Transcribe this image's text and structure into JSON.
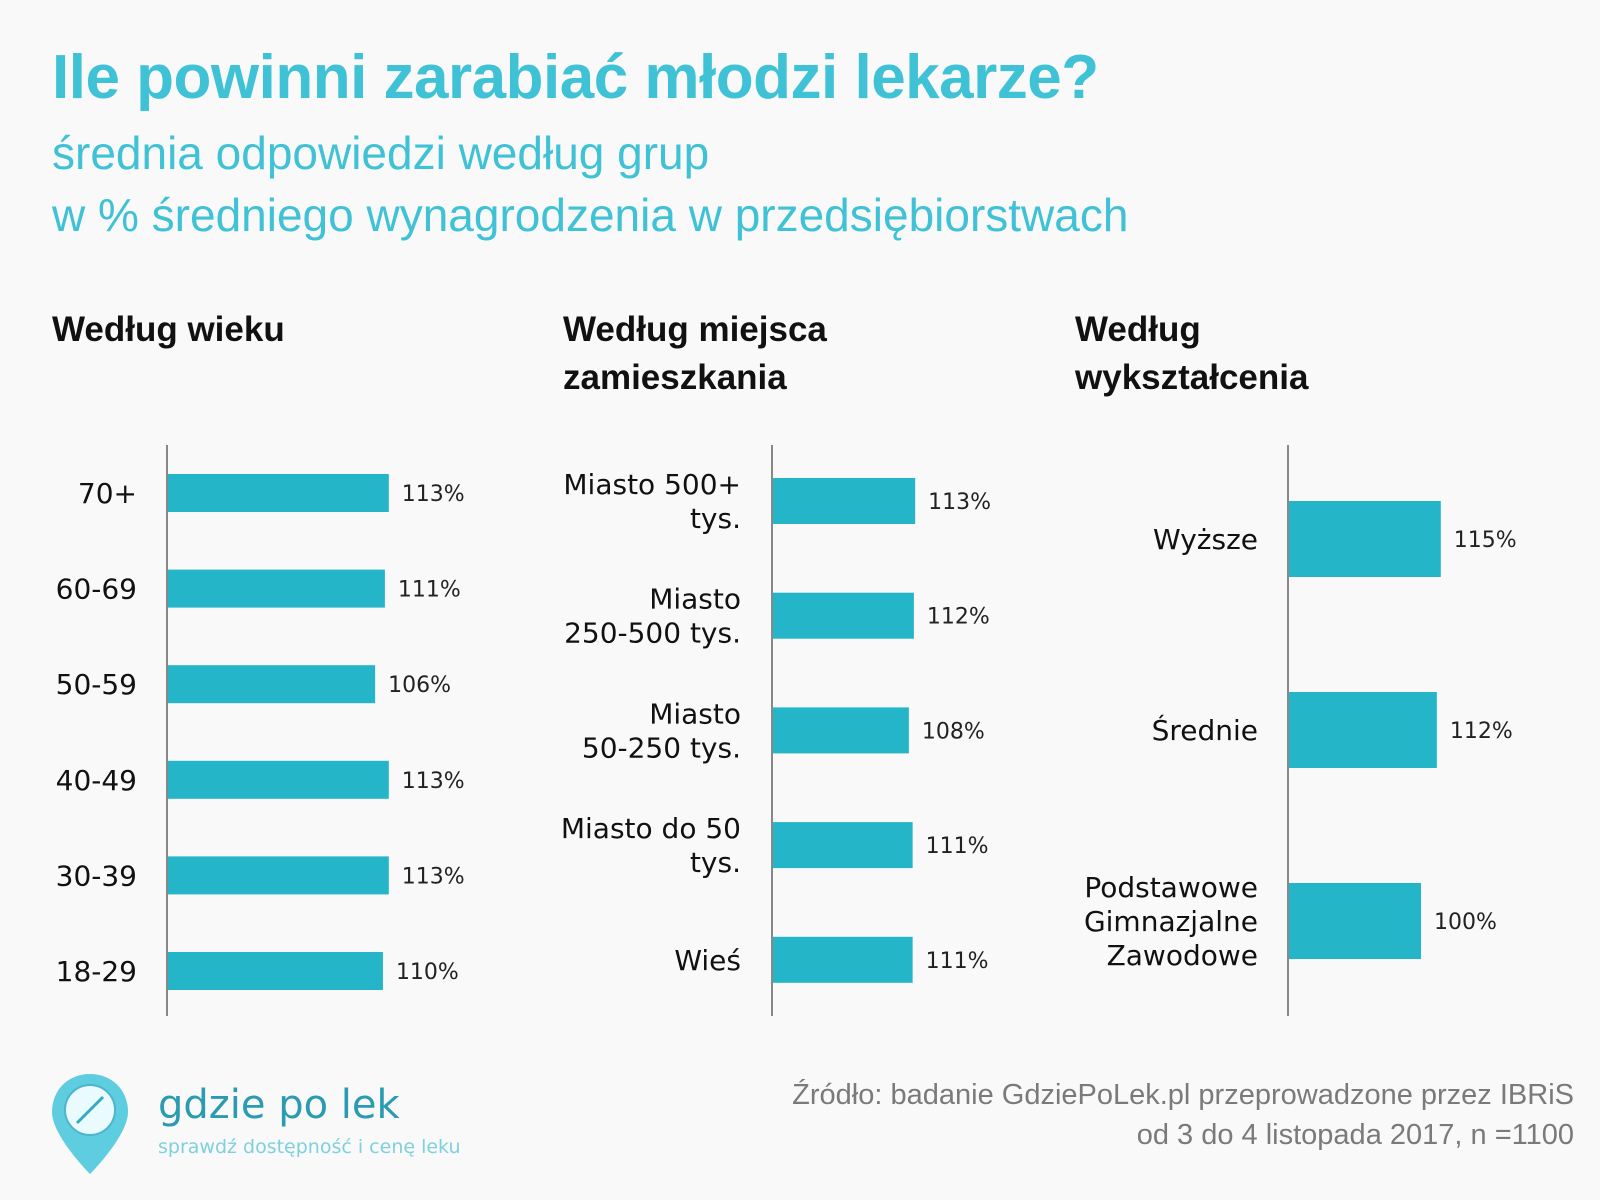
{
  "header": {
    "title": "Ile powinni zarabiać młodzi lekarze?",
    "subtitle_line1": "średnia odpowiedzi według grup",
    "subtitle_line2": "w % średniego wynagrodzenia w przedsiębiorstwach"
  },
  "colors": {
    "accent": "#3fc1d6",
    "bar": "#24b5c8",
    "axis": "#888888"
  },
  "chart_data": [
    {
      "type": "bar",
      "orientation": "horizontal",
      "title": "Według wieku",
      "categories": [
        "70+",
        "60-69",
        "50-59",
        "40-49",
        "30-39",
        "18-29"
      ],
      "values": [
        113,
        111,
        106,
        113,
        113,
        110
      ],
      "value_labels": [
        "113%",
        "111%",
        "106%",
        "113%",
        "113%",
        "110%"
      ],
      "unit": "%"
    },
    {
      "type": "bar",
      "orientation": "horizontal",
      "title": "Według miejsca zamieszkania",
      "categories": [
        "Miasto 500+ tys.",
        "Miasto 250-500 tys.",
        "Miasto 50-250 tys.",
        "Miasto do 50 tys.",
        "Wieś"
      ],
      "category_lines": [
        [
          "Miasto 500+",
          "tys."
        ],
        [
          "Miasto",
          "250-500 tys."
        ],
        [
          "Miasto",
          "50-250 tys."
        ],
        [
          "Miasto do 50",
          "tys."
        ],
        [
          "Wieś"
        ]
      ],
      "values": [
        113,
        112,
        108,
        111,
        111
      ],
      "value_labels": [
        "113%",
        "112%",
        "108%",
        "111%",
        "111%"
      ],
      "unit": "%"
    },
    {
      "type": "bar",
      "orientation": "horizontal",
      "title": "Według wykształcenia",
      "categories": [
        "Wyższe",
        "Średnie",
        "Podstawowe Gimnazjalne Zawodowe"
      ],
      "category_lines": [
        [
          "Wyższe"
        ],
        [
          "Średnie"
        ],
        [
          "Podstawowe",
          "Gimnazjalne",
          "Zawodowe"
        ]
      ],
      "values": [
        115,
        112,
        100
      ],
      "value_labels": [
        "115%",
        "112%",
        "100%"
      ],
      "unit": "%"
    }
  ],
  "panel_titles": {
    "age_line1": "Według wieku",
    "place_line1": "Według miejsca",
    "place_line2": "zamieszkania",
    "edu_line1": "Według",
    "edu_line2": "wykształcenia"
  },
  "footer": {
    "source_line1": "Źródło:  badanie GdziePoLek.pl przeprowadzone przez IBRiS",
    "source_line2": "od 3 do 4 listopada 2017, n =1100",
    "logo_name": "gdzie po lek",
    "logo_tagline": "sprawdź dostępność i cenę leku"
  }
}
